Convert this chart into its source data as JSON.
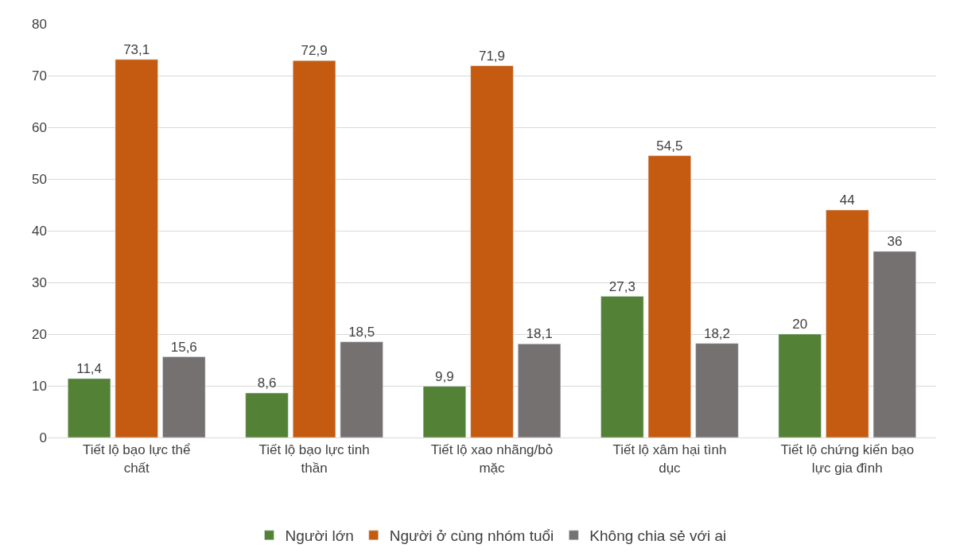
{
  "chart_data": {
    "type": "bar",
    "categories": [
      "Tiết lộ bạo lực thể chất",
      "Tiết lộ bạo lực tinh thần",
      "Tiết lộ xao nhãng/bỏ mặc",
      "Tiết lộ xâm hại tình dục",
      "Tiết lộ chứng kiến bạo lực gia đình"
    ],
    "series": [
      {
        "name": "Người lớn",
        "color": "#538135",
        "values": [
          11.4,
          8.6,
          9.9,
          27.3,
          20
        ],
        "value_labels": [
          "11,4",
          "8,6",
          "9,9",
          "27,3",
          "20"
        ]
      },
      {
        "name": "Người ở cùng nhóm tuổi",
        "color": "#c55a11",
        "values": [
          73.1,
          72.9,
          71.9,
          54.5,
          44
        ],
        "value_labels": [
          "73,1",
          "72,9",
          "71,9",
          "54,5",
          "44"
        ]
      },
      {
        "name": "Không chia sẻ với ai",
        "color": "#767171",
        "values": [
          15.6,
          18.5,
          18.1,
          18.2,
          36
        ],
        "value_labels": [
          "15,6",
          "18,5",
          "18,1",
          "18,2",
          "36"
        ]
      }
    ],
    "ylim": [
      0,
      80
    ],
    "yticks": [
      0,
      10,
      20,
      30,
      40,
      50,
      60,
      70,
      80
    ],
    "grid": "y",
    "legend": "bottom"
  }
}
